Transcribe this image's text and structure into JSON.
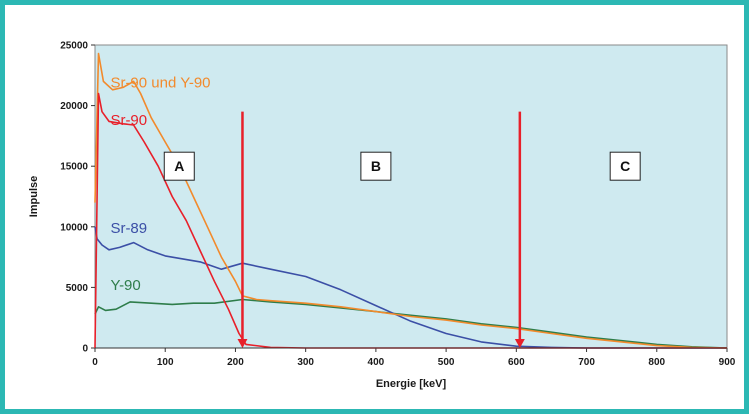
{
  "chart_data": {
    "type": "line",
    "xlabel": "Energie [keV]",
    "ylabel": "Impulse",
    "xlim": [
      0,
      900
    ],
    "ylim": [
      0,
      25000
    ],
    "x_ticks": [
      "0",
      "100",
      "200",
      "300",
      "400",
      "500",
      "600",
      "700",
      "800",
      "900"
    ],
    "y_ticks": [
      "0",
      "5000",
      "10000",
      "15000",
      "20000",
      "25000"
    ],
    "grid": false,
    "plot_background": "#cfeaf0",
    "series": [
      {
        "name": "Sr-90 und Y-90",
        "color": "#f28a2c",
        "points": [
          [
            0,
            12000
          ],
          [
            5,
            24300
          ],
          [
            12,
            22000
          ],
          [
            25,
            21300
          ],
          [
            40,
            21500
          ],
          [
            55,
            22000
          ],
          [
            65,
            21000
          ],
          [
            80,
            19000
          ],
          [
            100,
            17000
          ],
          [
            120,
            15000
          ],
          [
            140,
            12500
          ],
          [
            160,
            10000
          ],
          [
            180,
            7500
          ],
          [
            200,
            5500
          ],
          [
            210,
            4300
          ],
          [
            230,
            4000
          ],
          [
            250,
            3900
          ],
          [
            300,
            3700
          ],
          [
            350,
            3400
          ],
          [
            400,
            3000
          ],
          [
            450,
            2600
          ],
          [
            500,
            2300
          ],
          [
            550,
            1900
          ],
          [
            600,
            1600
          ],
          [
            650,
            1200
          ],
          [
            700,
            800
          ],
          [
            750,
            500
          ],
          [
            800,
            200
          ],
          [
            850,
            50
          ],
          [
            900,
            0
          ]
        ]
      },
      {
        "name": "Sr-90",
        "color": "#e8202a",
        "points": [
          [
            0,
            0
          ],
          [
            5,
            21000
          ],
          [
            10,
            19500
          ],
          [
            20,
            18700
          ],
          [
            40,
            18500
          ],
          [
            55,
            18400
          ],
          [
            70,
            17000
          ],
          [
            90,
            15000
          ],
          [
            110,
            12500
          ],
          [
            130,
            10500
          ],
          [
            150,
            8000
          ],
          [
            170,
            5500
          ],
          [
            190,
            3200
          ],
          [
            205,
            1200
          ],
          [
            215,
            300
          ],
          [
            250,
            50
          ],
          [
            300,
            0
          ],
          [
            900,
            0
          ]
        ]
      },
      {
        "name": "Sr-89",
        "color": "#3b4fa6",
        "points": [
          [
            0,
            10000
          ],
          [
            3,
            9000
          ],
          [
            10,
            8500
          ],
          [
            20,
            8100
          ],
          [
            35,
            8300
          ],
          [
            55,
            8700
          ],
          [
            75,
            8100
          ],
          [
            100,
            7600
          ],
          [
            150,
            7100
          ],
          [
            180,
            6500
          ],
          [
            210,
            7000
          ],
          [
            250,
            6500
          ],
          [
            300,
            5900
          ],
          [
            350,
            4800
          ],
          [
            400,
            3500
          ],
          [
            450,
            2200
          ],
          [
            500,
            1200
          ],
          [
            550,
            500
          ],
          [
            600,
            150
          ],
          [
            650,
            50
          ],
          [
            700,
            0
          ],
          [
            900,
            0
          ]
        ]
      },
      {
        "name": "Y-90",
        "color": "#2e7d4a",
        "points": [
          [
            0,
            2800
          ],
          [
            5,
            3400
          ],
          [
            15,
            3100
          ],
          [
            30,
            3200
          ],
          [
            50,
            3800
          ],
          [
            80,
            3700
          ],
          [
            110,
            3600
          ],
          [
            140,
            3700
          ],
          [
            170,
            3700
          ],
          [
            210,
            4000
          ],
          [
            250,
            3800
          ],
          [
            300,
            3600
          ],
          [
            350,
            3300
          ],
          [
            400,
            3000
          ],
          [
            450,
            2700
          ],
          [
            500,
            2400
          ],
          [
            550,
            2000
          ],
          [
            600,
            1700
          ],
          [
            650,
            1300
          ],
          [
            700,
            900
          ],
          [
            750,
            600
          ],
          [
            800,
            300
          ],
          [
            850,
            100
          ],
          [
            900,
            0
          ]
        ]
      }
    ],
    "annotations": [
      {
        "type": "arrow",
        "x": 210,
        "y_from": 19500,
        "y_to": 0,
        "color": "#e8202a"
      },
      {
        "type": "arrow",
        "x": 605,
        "y_from": 19500,
        "y_to": 0,
        "color": "#e8202a"
      }
    ],
    "regions": [
      {
        "label": "A",
        "x": 120,
        "y": 15000
      },
      {
        "label": "B",
        "x": 400,
        "y": 15000
      },
      {
        "label": "C",
        "x": 755,
        "y": 15000
      }
    ]
  }
}
